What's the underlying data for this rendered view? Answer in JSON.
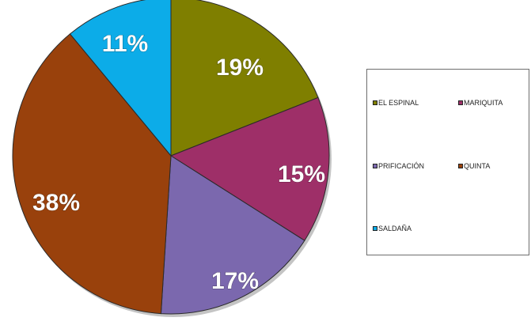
{
  "chart_data": {
    "type": "pie",
    "categories": [
      "EL ESPINAL",
      "MARIQUITA",
      "PRIFICACIÓN",
      "QUINTA",
      "SALDAÑA"
    ],
    "values": [
      19,
      15,
      17,
      38,
      11
    ],
    "value_labels": [
      "19%",
      "15%",
      "17%",
      "38%",
      "11%"
    ],
    "colors": [
      "#7f7f00",
      "#9e2f68",
      "#7b68ae",
      "#99410c",
      "#0cace8"
    ],
    "start_angle_deg": 0,
    "direction": "clockwise",
    "legend_placement": "right",
    "legend": [
      {
        "label": "EL ESPINAL",
        "color": "#7f7f00"
      },
      {
        "label": "MARIQUITA",
        "color": "#9e2f68"
      },
      {
        "label": "PRIFICACIÓN",
        "color": "#7b68ae"
      },
      {
        "label": "QUINTA",
        "color": "#99410c"
      },
      {
        "label": "SALDAÑA",
        "color": "#0cace8"
      }
    ]
  }
}
